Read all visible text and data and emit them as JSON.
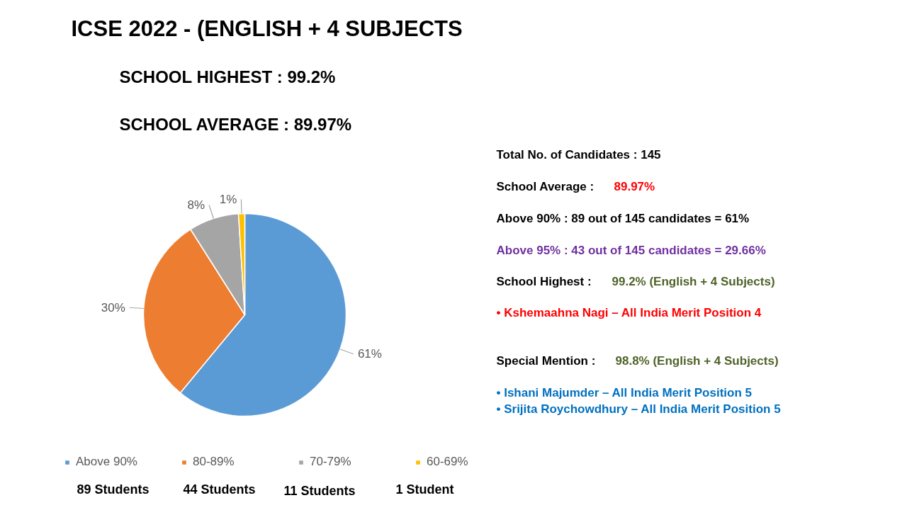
{
  "chart_data": {
    "type": "pie",
    "title": "ICSE 2022 - (ENGLISH + 4 SUBJECTS",
    "categories": [
      "Above 90%",
      "80-89%",
      "70-79%",
      "60-69%"
    ],
    "values": [
      61,
      30,
      8,
      1
    ],
    "colors": [
      "#5b9bd5",
      "#ed7d31",
      "#a5a5a5",
      "#ffc000"
    ],
    "value_labels": [
      "61%",
      "30%",
      "8%",
      "1%"
    ],
    "legend": "bottom",
    "annotations": [
      "SCHOOL HIGHEST : 99.2%",
      "SCHOOL AVERAGE : 89.97%",
      "89 Students",
      "44 Students",
      "11 Students",
      "1 Student",
      "Total No. of Candidates : 145",
      "School Average :",
      "89.97%",
      "Above 90% : 89 out of 145 candidates = 61%",
      "Above 95% : 43 out of 145 candidates = 29.66%",
      "School Highest :",
      "99.2% (English + 4 Subjects)",
      "• Kshemaahna Nagi – All India Merit Position 4",
      "Special Mention :",
      "98.8% (English + 4 Subjects)",
      "• Ishani Majumder – All India Merit Position 5",
      "• Srijita Roychowdhury – All India Merit Position 5"
    ]
  }
}
